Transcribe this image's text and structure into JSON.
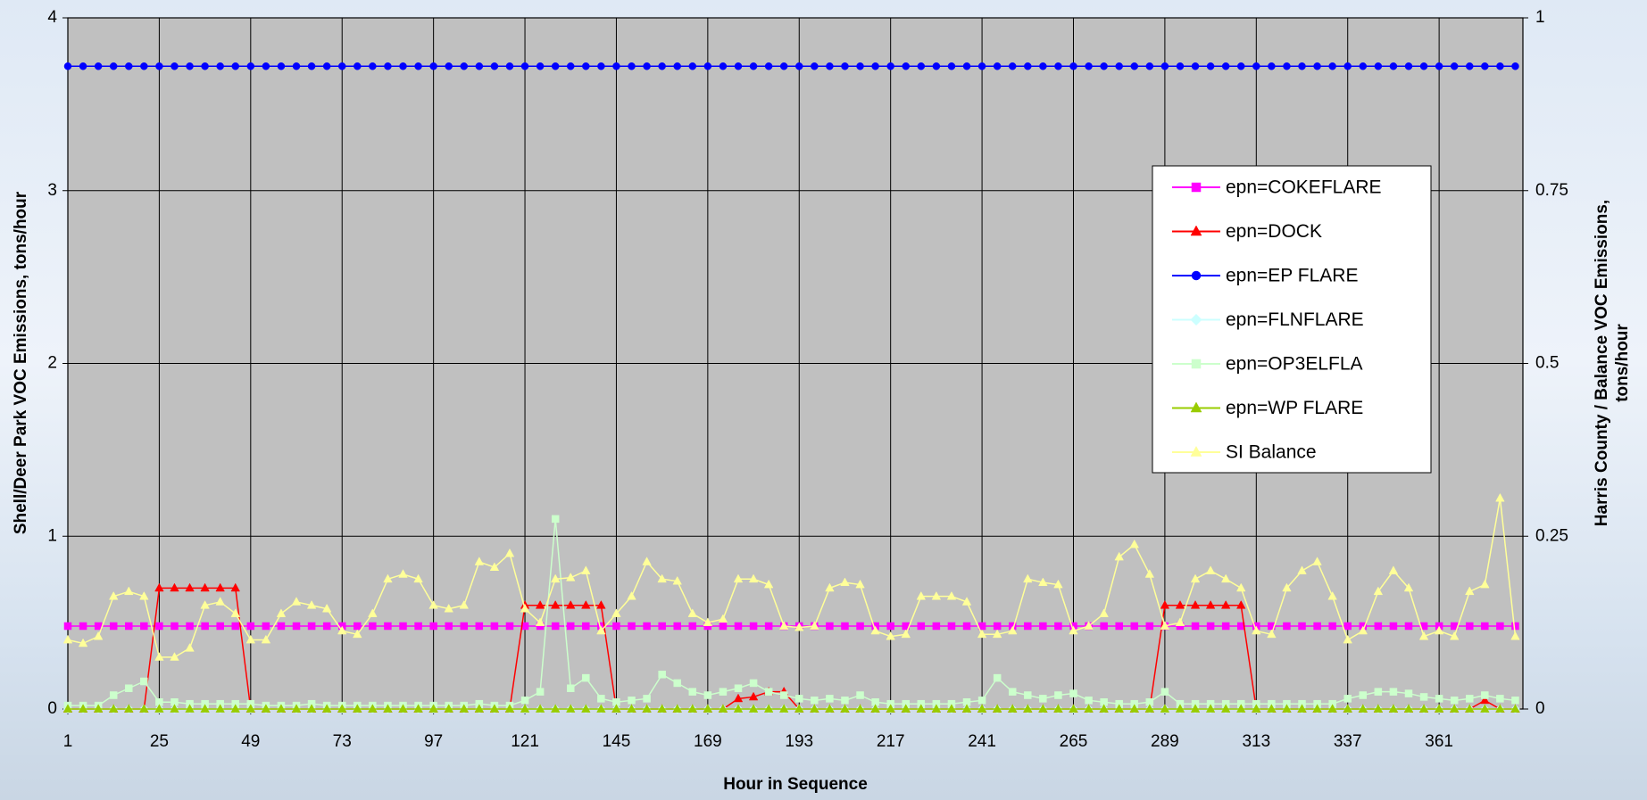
{
  "chart_data": {
    "type": "line",
    "x_label": "Hour in Sequence",
    "y_label": "Shell/Deer Park VOC Emissions, tons/hour",
    "y2_label": [
      "Harris County / Balance VOC Emissions,",
      "tons/hour"
    ],
    "xlim": [
      1,
      383
    ],
    "xticks": [
      1,
      25,
      49,
      73,
      97,
      121,
      145,
      169,
      193,
      217,
      241,
      265,
      289,
      313,
      337,
      361
    ],
    "ylim": [
      0,
      4
    ],
    "yticks": [
      0,
      1,
      2,
      3,
      4
    ],
    "y2lim": [
      0,
      1
    ],
    "y2ticks": [
      0,
      0.25,
      0.5,
      0.75,
      1
    ],
    "grid": true,
    "legend": "upper right",
    "x": [
      1,
      5,
      9,
      13,
      17,
      21,
      25,
      29,
      33,
      37,
      41,
      45,
      49,
      53,
      57,
      61,
      65,
      69,
      73,
      77,
      81,
      85,
      89,
      93,
      97,
      101,
      105,
      109,
      113,
      117,
      121,
      125,
      129,
      133,
      137,
      141,
      145,
      149,
      153,
      157,
      161,
      165,
      169,
      173,
      177,
      181,
      185,
      189,
      193,
      197,
      201,
      205,
      209,
      213,
      217,
      221,
      225,
      229,
      233,
      237,
      241,
      245,
      249,
      253,
      257,
      261,
      265,
      269,
      273,
      277,
      281,
      285,
      289,
      293,
      297,
      301,
      305,
      309,
      313,
      317,
      321,
      325,
      329,
      333,
      337,
      341,
      345,
      349,
      353,
      357,
      361,
      365,
      369,
      373,
      377,
      381
    ],
    "series": [
      {
        "name": "epn=COKEFLARE",
        "color": "#ff00ff",
        "marker": "square",
        "values": [
          0.48,
          0.48,
          0.48,
          0.48,
          0.48,
          0.48,
          0.48,
          0.48,
          0.48,
          0.48,
          0.48,
          0.48,
          0.48,
          0.48,
          0.48,
          0.48,
          0.48,
          0.48,
          0.48,
          0.48,
          0.48,
          0.48,
          0.48,
          0.48,
          0.48,
          0.48,
          0.48,
          0.48,
          0.48,
          0.48,
          0.48,
          0.48,
          0.48,
          0.48,
          0.48,
          0.48,
          0.48,
          0.48,
          0.48,
          0.48,
          0.48,
          0.48,
          0.48,
          0.48,
          0.48,
          0.48,
          0.48,
          0.48,
          0.48,
          0.48,
          0.48,
          0.48,
          0.48,
          0.48,
          0.48,
          0.48,
          0.48,
          0.48,
          0.48,
          0.48,
          0.48,
          0.48,
          0.48,
          0.48,
          0.48,
          0.48,
          0.48,
          0.48,
          0.48,
          0.48,
          0.48,
          0.48,
          0.48,
          0.48,
          0.48,
          0.48,
          0.48,
          0.48,
          0.48,
          0.48,
          0.48,
          0.48,
          0.48,
          0.48,
          0.48,
          0.48,
          0.48,
          0.48,
          0.48,
          0.48,
          0.48,
          0.48,
          0.48,
          0.48,
          0.48,
          0.48
        ]
      },
      {
        "name": "epn=DOCK",
        "color": "#ff0000",
        "marker": "triangle",
        "values": [
          0,
          0,
          0,
          0,
          0,
          0,
          0.7,
          0.7,
          0.7,
          0.7,
          0.7,
          0.7,
          0,
          0,
          0,
          0,
          0,
          0,
          0,
          0,
          0,
          0,
          0,
          0,
          0,
          0,
          0,
          0,
          0,
          0,
          0.6,
          0.6,
          0.6,
          0.6,
          0.6,
          0.6,
          0,
          0,
          0,
          0,
          0,
          0,
          0,
          0,
          0.06,
          0.07,
          0.1,
          0.1,
          0,
          0,
          0,
          0,
          0,
          0,
          0,
          0,
          0,
          0,
          0,
          0,
          0,
          0,
          0,
          0,
          0,
          0,
          0,
          0,
          0,
          0,
          0,
          0,
          0.6,
          0.6,
          0.6,
          0.6,
          0.6,
          0.6,
          0,
          0,
          0,
          0,
          0,
          0,
          0,
          0,
          0,
          0,
          0,
          0,
          0,
          0,
          0,
          0.05,
          0,
          0
        ]
      },
      {
        "name": "epn=EP FLARE",
        "color": "#0000ff",
        "marker": "circle",
        "values": [
          3.72,
          3.72,
          3.72,
          3.72,
          3.72,
          3.72,
          3.72,
          3.72,
          3.72,
          3.72,
          3.72,
          3.72,
          3.72,
          3.72,
          3.72,
          3.72,
          3.72,
          3.72,
          3.72,
          3.72,
          3.72,
          3.72,
          3.72,
          3.72,
          3.72,
          3.72,
          3.72,
          3.72,
          3.72,
          3.72,
          3.72,
          3.72,
          3.72,
          3.72,
          3.72,
          3.72,
          3.72,
          3.72,
          3.72,
          3.72,
          3.72,
          3.72,
          3.72,
          3.72,
          3.72,
          3.72,
          3.72,
          3.72,
          3.72,
          3.72,
          3.72,
          3.72,
          3.72,
          3.72,
          3.72,
          3.72,
          3.72,
          3.72,
          3.72,
          3.72,
          3.72,
          3.72,
          3.72,
          3.72,
          3.72,
          3.72,
          3.72,
          3.72,
          3.72,
          3.72,
          3.72,
          3.72,
          3.72,
          3.72,
          3.72,
          3.72,
          3.72,
          3.72,
          3.72,
          3.72,
          3.72,
          3.72,
          3.72,
          3.72,
          3.72,
          3.72,
          3.72,
          3.72,
          3.72,
          3.72,
          3.72,
          3.72,
          3.72,
          3.72,
          3.72,
          3.72
        ]
      },
      {
        "name": "epn=FLNFLARE",
        "color": "#ccffff",
        "marker": "diamond",
        "values": [
          0,
          0,
          0,
          0,
          0,
          0,
          0,
          0,
          0,
          0,
          0,
          0,
          0,
          0,
          0,
          0,
          0,
          0,
          0,
          0,
          0,
          0,
          0,
          0,
          0,
          0,
          0,
          0,
          0,
          0,
          0,
          0,
          0,
          0,
          0,
          0,
          0,
          0,
          0,
          0,
          0,
          0,
          0,
          0,
          0,
          0,
          0,
          0,
          0,
          0,
          0,
          0,
          0,
          0,
          0,
          0,
          0,
          0,
          0,
          0,
          0,
          0,
          0,
          0,
          0,
          0,
          0,
          0,
          0,
          0,
          0,
          0,
          0,
          0,
          0,
          0,
          0,
          0,
          0,
          0,
          0,
          0,
          0,
          0,
          0,
          0,
          0,
          0,
          0,
          0,
          0,
          0,
          0,
          0,
          0,
          0
        ]
      },
      {
        "name": "epn=OP3ELFLA",
        "color": "#ccffcc",
        "marker": "square",
        "values": [
          0.02,
          0.02,
          0.02,
          0.08,
          0.12,
          0.16,
          0.04,
          0.04,
          0.03,
          0.03,
          0.03,
          0.03,
          0.03,
          0.02,
          0.02,
          0.02,
          0.03,
          0.02,
          0.02,
          0.02,
          0.02,
          0.02,
          0.02,
          0.02,
          0.02,
          0.02,
          0.02,
          0.03,
          0.02,
          0.02,
          0.05,
          0.1,
          1.1,
          0.12,
          0.18,
          0.06,
          0.04,
          0.05,
          0.06,
          0.2,
          0.15,
          0.1,
          0.08,
          0.1,
          0.12,
          0.15,
          0.1,
          0.08,
          0.06,
          0.05,
          0.06,
          0.05,
          0.08,
          0.04,
          0.03,
          0.03,
          0.03,
          0.03,
          0.03,
          0.04,
          0.05,
          0.18,
          0.1,
          0.08,
          0.06,
          0.08,
          0.09,
          0.05,
          0.04,
          0.03,
          0.03,
          0.04,
          0.1,
          0.03,
          0.03,
          0.03,
          0.03,
          0.03,
          0.03,
          0.03,
          0.03,
          0.03,
          0.03,
          0.03,
          0.06,
          0.08,
          0.1,
          0.1,
          0.09,
          0.07,
          0.06,
          0.05,
          0.06,
          0.08,
          0.06,
          0.05
        ]
      },
      {
        "name": "epn=WP FLARE",
        "color": "#99cc00",
        "marker": "triangle",
        "values": [
          0,
          0,
          0,
          0,
          0,
          0,
          0,
          0,
          0,
          0,
          0,
          0,
          0,
          0,
          0,
          0,
          0,
          0,
          0,
          0,
          0,
          0,
          0,
          0,
          0,
          0,
          0,
          0,
          0,
          0,
          0,
          0,
          0,
          0,
          0,
          0,
          0,
          0,
          0,
          0,
          0,
          0,
          0,
          0,
          0,
          0,
          0,
          0,
          0,
          0,
          0,
          0,
          0,
          0,
          0,
          0,
          0,
          0,
          0,
          0,
          0,
          0,
          0,
          0,
          0,
          0,
          0,
          0,
          0,
          0,
          0,
          0,
          0,
          0,
          0,
          0,
          0,
          0,
          0,
          0,
          0,
          0,
          0,
          0,
          0,
          0,
          0,
          0,
          0,
          0,
          0,
          0,
          0,
          0,
          0,
          0
        ]
      },
      {
        "name": "SI Balance",
        "color": "#ffff99",
        "marker": "triangle",
        "axis": "y2",
        "values": [
          0.1,
          0.095,
          0.105,
          0.163,
          0.17,
          0.163,
          0.075,
          0.075,
          0.088,
          0.15,
          0.155,
          0.138,
          0.1,
          0.1,
          0.138,
          0.155,
          0.15,
          0.145,
          0.113,
          0.108,
          0.138,
          0.188,
          0.195,
          0.188,
          0.15,
          0.145,
          0.15,
          0.213,
          0.205,
          0.225,
          0.145,
          0.125,
          0.188,
          0.19,
          0.2,
          0.113,
          0.138,
          0.163,
          0.213,
          0.188,
          0.185,
          0.138,
          0.125,
          0.13,
          0.188,
          0.188,
          0.18,
          0.12,
          0.118,
          0.12,
          0.175,
          0.183,
          0.18,
          0.113,
          0.105,
          0.108,
          0.163,
          0.163,
          0.163,
          0.155,
          0.108,
          0.108,
          0.113,
          0.188,
          0.183,
          0.18,
          0.113,
          0.12,
          0.138,
          0.22,
          0.238,
          0.195,
          0.12,
          0.125,
          0.188,
          0.2,
          0.188,
          0.175,
          0.113,
          0.108,
          0.175,
          0.2,
          0.213,
          0.163,
          0.1,
          0.113,
          0.17,
          0.2,
          0.175,
          0.105,
          0.113,
          0.105,
          0.17,
          0.18,
          0.305,
          0.105
        ]
      }
    ]
  }
}
